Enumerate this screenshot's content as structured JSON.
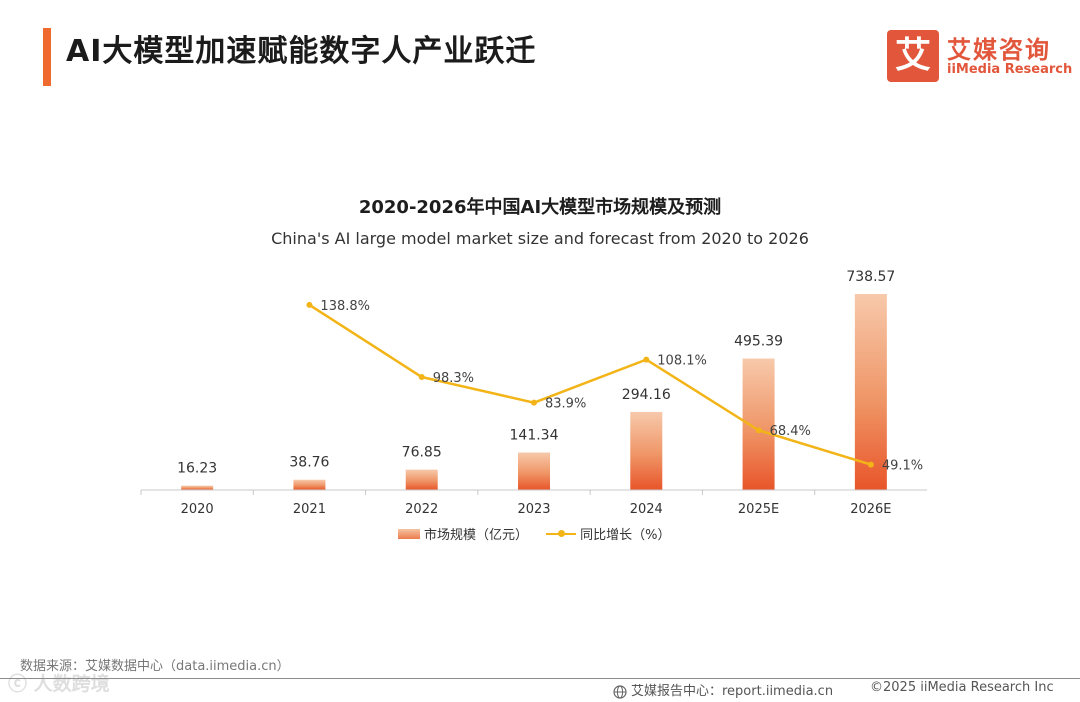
{
  "page": {
    "title": "AI大模型加速赋能数字人产业跃迁",
    "logo_mark": "艾",
    "logo_cn": "艾媒咨询",
    "logo_en": "iiMedia Research",
    "source": "数据来源：艾媒数据中心（data.iimedia.cn）",
    "footer_report": "艾媒报告中心：report.iimedia.cn",
    "copyright": "©2025  iiMedia Research  Inc",
    "watermark": "ⓒ 人数跨境"
  },
  "colors": {
    "accent": "#ee6a2e",
    "bar_top": "#f6c6a6",
    "bar_bottom": "#e9582a",
    "line": "#f2b417"
  },
  "chart_data": {
    "type": "bar",
    "title": "2020-2026年中国AI大模型市场规模及预测",
    "subtitle": "China's AI large model market size and forecast from 2020 to 2026",
    "categories": [
      "2020",
      "2021",
      "2022",
      "2023",
      "2024",
      "2025E",
      "2026E"
    ],
    "series": [
      {
        "name": "市场规模（亿元）",
        "kind": "bar",
        "values": [
          16.23,
          38.76,
          76.85,
          141.34,
          294.16,
          495.39,
          738.57
        ],
        "labels": [
          "16.23",
          "38.76",
          "76.85",
          "141.34",
          "294.16",
          "495.39",
          "738.57"
        ]
      },
      {
        "name": "同比增长（%）",
        "kind": "line",
        "values": [
          null,
          138.8,
          98.3,
          83.9,
          108.1,
          68.4,
          49.1
        ],
        "labels": [
          "",
          "138.8%",
          "98.3%",
          "83.9%",
          "108.1%",
          "68.4%",
          "49.1%"
        ]
      }
    ],
    "ylim_bar": [
      0,
      800
    ],
    "ylim_line": [
      0,
      180
    ],
    "grid": false,
    "legend": "bottom-center"
  }
}
